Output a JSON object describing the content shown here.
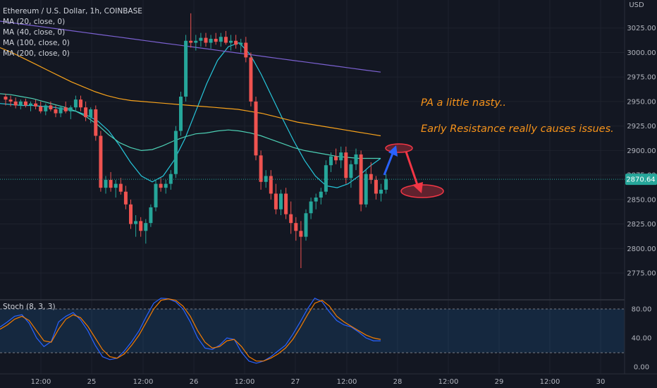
{
  "symbol_title": "Ethereum / U.S. Dollar, 1h, COINBASE",
  "currency": "USD",
  "indicators": [
    {
      "label": "MA (20, close, 0)",
      "color": "#26c6da"
    },
    {
      "label": "MA (40, close, 0)",
      "color": "#4dd0b5"
    },
    {
      "label": "MA (100, close, 0)",
      "color": "#f7a21b"
    },
    {
      "label": "MA (200, close, 0)",
      "color": "#7b61d1"
    }
  ],
  "oscillator_label": "Stoch (8, 3, 3)",
  "last_price": "2870.64",
  "last_price_color": "#26a69a",
  "annotations": {
    "line1": "PA a little nasty..",
    "line2": "Early Resistance really causes issues."
  },
  "chart_data": {
    "type": "candlestick",
    "price_ticks": [
      "3025.00",
      "3000.00",
      "2975.00",
      "2950.00",
      "2925.00",
      "2900.00",
      "2875.00",
      "2850.00",
      "2825.00",
      "2800.00",
      "2775.00"
    ],
    "osc_ticks": [
      "80.00",
      "40.00",
      "0.00"
    ],
    "x_ticks": [
      "12:00",
      "25",
      "12:00",
      "26",
      "12:00",
      "27",
      "12:00",
      "28",
      "12:00",
      "29",
      "12:00",
      "30"
    ],
    "ylim": [
      2760,
      3045
    ],
    "osc_ylim": [
      -5,
      100
    ],
    "candles": [
      [
        2955,
        2958,
        2946,
        2952
      ],
      [
        2952,
        2956,
        2945,
        2950
      ],
      [
        2950,
        2954,
        2943,
        2946
      ],
      [
        2946,
        2952,
        2942,
        2950
      ],
      [
        2950,
        2953,
        2944,
        2946
      ],
      [
        2946,
        2950,
        2940,
        2948
      ],
      [
        2948,
        2952,
        2942,
        2945
      ],
      [
        2945,
        2950,
        2938,
        2940
      ],
      [
        2940,
        2948,
        2936,
        2946
      ],
      [
        2946,
        2950,
        2940,
        2942
      ],
      [
        2942,
        2946,
        2934,
        2938
      ],
      [
        2938,
        2946,
        2934,
        2944
      ],
      [
        2944,
        2950,
        2938,
        2940
      ],
      [
        2940,
        2946,
        2932,
        2944
      ],
      [
        2944,
        2956,
        2940,
        2952
      ],
      [
        2952,
        2956,
        2940,
        2944
      ],
      [
        2944,
        2950,
        2930,
        2934
      ],
      [
        2934,
        2944,
        2928,
        2942
      ],
      [
        2942,
        2946,
        2910,
        2915
      ],
      [
        2915,
        2920,
        2858,
        2862
      ],
      [
        2862,
        2874,
        2856,
        2870
      ],
      [
        2870,
        2878,
        2858,
        2862
      ],
      [
        2862,
        2870,
        2852,
        2866
      ],
      [
        2866,
        2872,
        2855,
        2858
      ],
      [
        2858,
        2864,
        2840,
        2845
      ],
      [
        2845,
        2850,
        2820,
        2825
      ],
      [
        2825,
        2834,
        2812,
        2828
      ],
      [
        2828,
        2832,
        2812,
        2818
      ],
      [
        2818,
        2830,
        2805,
        2826
      ],
      [
        2826,
        2845,
        2822,
        2842
      ],
      [
        2842,
        2870,
        2838,
        2866
      ],
      [
        2866,
        2872,
        2858,
        2862
      ],
      [
        2862,
        2870,
        2856,
        2866
      ],
      [
        2866,
        2880,
        2860,
        2876
      ],
      [
        2876,
        2925,
        2872,
        2920
      ],
      [
        2920,
        2960,
        2915,
        2955
      ],
      [
        2955,
        3018,
        2950,
        3012
      ],
      [
        3012,
        3040,
        3005,
        3010
      ],
      [
        3010,
        3018,
        3002,
        3012
      ],
      [
        3012,
        3020,
        3006,
        3015
      ],
      [
        3015,
        3020,
        3006,
        3010
      ],
      [
        3010,
        3018,
        3004,
        3014
      ],
      [
        3014,
        3020,
        3008,
        3011
      ],
      [
        3011,
        3020,
        3006,
        3016
      ],
      [
        3016,
        3022,
        3008,
        3010
      ],
      [
        3010,
        3018,
        3002,
        3012
      ],
      [
        3012,
        3018,
        3004,
        3008
      ],
      [
        3008,
        3014,
        3000,
        3010
      ],
      [
        3010,
        3016,
        2990,
        2995
      ],
      [
        2995,
        3000,
        2945,
        2950
      ],
      [
        2950,
        2955,
        2890,
        2895
      ],
      [
        2895,
        2900,
        2860,
        2868
      ],
      [
        2868,
        2880,
        2862,
        2874
      ],
      [
        2874,
        2880,
        2850,
        2856
      ],
      [
        2856,
        2866,
        2835,
        2840
      ],
      [
        2840,
        2860,
        2834,
        2856
      ],
      [
        2856,
        2862,
        2830,
        2835
      ],
      [
        2835,
        2848,
        2815,
        2826
      ],
      [
        2826,
        2832,
        2808,
        2818
      ],
      [
        2818,
        2828,
        2780,
        2812
      ],
      [
        2812,
        2840,
        2808,
        2836
      ],
      [
        2836,
        2852,
        2830,
        2848
      ],
      [
        2848,
        2856,
        2840,
        2852
      ],
      [
        2852,
        2862,
        2845,
        2858
      ],
      [
        2858,
        2890,
        2855,
        2885
      ],
      [
        2885,
        2898,
        2878,
        2894
      ],
      [
        2894,
        2902,
        2886,
        2890
      ],
      [
        2890,
        2904,
        2882,
        2898
      ],
      [
        2898,
        2904,
        2866,
        2872
      ],
      [
        2872,
        2890,
        2862,
        2886
      ],
      [
        2886,
        2902,
        2880,
        2896
      ],
      [
        2896,
        2900,
        2838,
        2845
      ],
      [
        2845,
        2880,
        2842,
        2876
      ],
      [
        2876,
        2888,
        2866,
        2870
      ],
      [
        2870,
        2874,
        2850,
        2856
      ],
      [
        2856,
        2866,
        2848,
        2860
      ],
      [
        2860,
        2876,
        2856,
        2871
      ]
    ],
    "series": [
      {
        "name": "MA (20, close, 0)",
        "color": "#26c6da",
        "values": [
          2948,
          2947,
          2946,
          2946,
          2945,
          2944,
          2942,
          2940,
          2936,
          2930,
          2920,
          2905,
          2888,
          2874,
          2868,
          2874,
          2890,
          2912,
          2940,
          2968,
          2992,
          3006,
          3010,
          2998,
          2978,
          2955,
          2932,
          2910,
          2890,
          2874,
          2864,
          2862,
          2866,
          2874,
          2884,
          2892
        ]
      },
      {
        "name": "MA (40, close, 0)",
        "color": "#4dd0b5",
        "values": [
          2958,
          2957,
          2955,
          2953,
          2950,
          2947,
          2944,
          2940,
          2934,
          2926,
          2916,
          2908,
          2903,
          2900,
          2901,
          2905,
          2910,
          2914,
          2917,
          2918,
          2920,
          2921,
          2920,
          2918,
          2915,
          2911,
          2907,
          2903,
          2900,
          2898,
          2896,
          2894,
          2893,
          2892,
          2892,
          2892
        ]
      },
      {
        "name": "MA (100, close, 0)",
        "color": "#f7a21b",
        "values": [
          3005,
          3000,
          2994,
          2988,
          2982,
          2976,
          2970,
          2965,
          2960,
          2956,
          2953,
          2951,
          2950,
          2949,
          2948,
          2947,
          2946,
          2945,
          2944,
          2943,
          2942,
          2940,
          2938,
          2935,
          2932,
          2929,
          2927,
          2925,
          2923,
          2921,
          2919,
          2917,
          2915
        ]
      },
      {
        "name": "MA (200, close, 0)",
        "color": "#7b61d1",
        "values": [
          3032,
          3030,
          3028,
          3026,
          3024,
          3022,
          3020,
          3018,
          3016,
          3014,
          3012,
          3010,
          3008,
          3006,
          3004,
          3002,
          3000,
          2998,
          2996,
          2994,
          2992,
          2990,
          2988,
          2986,
          2984,
          2982,
          2980
        ]
      }
    ],
    "stoch": {
      "k": [
        55,
        62,
        70,
        72,
        60,
        40,
        28,
        35,
        62,
        70,
        75,
        65,
        50,
        30,
        14,
        10,
        12,
        22,
        35,
        50,
        70,
        88,
        95,
        94,
        90,
        80,
        62,
        40,
        26,
        24,
        30,
        40,
        38,
        20,
        8,
        5,
        8,
        14,
        22,
        30,
        45,
        62,
        80,
        95,
        90,
        76,
        64,
        58,
        55,
        48,
        40,
        36,
        36
      ],
      "d": [
        52,
        58,
        66,
        70,
        64,
        50,
        36,
        34,
        52,
        66,
        72,
        68,
        56,
        40,
        24,
        14,
        12,
        18,
        30,
        44,
        62,
        80,
        92,
        94,
        92,
        84,
        70,
        50,
        34,
        26,
        28,
        36,
        38,
        28,
        14,
        8,
        8,
        12,
        18,
        26,
        38,
        54,
        72,
        88,
        92,
        84,
        70,
        62,
        56,
        50,
        44,
        40,
        38
      ]
    }
  }
}
